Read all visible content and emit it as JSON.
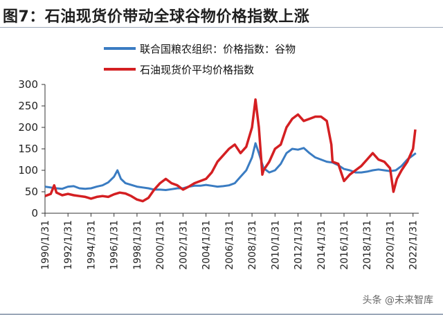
{
  "title": "图7：石油现货价带动全球谷物价格指数上涨",
  "watermark": "头条 @未来智库",
  "chart_data": {
    "type": "line",
    "title": "图7：石油现货价带动全球谷物价格指数上涨",
    "xlabel": "",
    "ylabel": "",
    "ylim": [
      0,
      300
    ],
    "yticks": [
      0,
      50,
      100,
      150,
      200,
      250,
      300
    ],
    "xlim": [
      1990,
      2022.5
    ],
    "xtick_labels": [
      "1990/1/31",
      "1992/1/31",
      "1994/1/31",
      "1996/1/31",
      "1998/1/31",
      "2000/1/31",
      "2002/1/31",
      "2004/1/31",
      "2006/1/31",
      "2008/1/31",
      "2010/1/31",
      "2012/1/31",
      "2014/1/31",
      "2016/1/31",
      "2018/1/31",
      "2020/1/31",
      "2022/1/31"
    ],
    "xtick_years": [
      1990,
      1992,
      1994,
      1996,
      1998,
      2000,
      2002,
      2004,
      2006,
      2008,
      2010,
      2012,
      2014,
      2016,
      2018,
      2020,
      2022
    ],
    "legend_position": "top",
    "series": [
      {
        "name": "联合国粮农组织：价格指数：谷物",
        "color": "#3a7cc2",
        "x": [
          1990,
          1990.5,
          1991,
          1991.5,
          1992,
          1992.5,
          1993,
          1993.5,
          1994,
          1994.5,
          1995,
          1995.5,
          1996,
          1996.3,
          1996.6,
          1997,
          1997.5,
          1998,
          1998.5,
          1999,
          1999.5,
          2000,
          2000.5,
          2001,
          2001.5,
          2002,
          2002.5,
          2003,
          2003.5,
          2004,
          2004.5,
          2005,
          2005.5,
          2006,
          2006.5,
          2007,
          2007.5,
          2008,
          2008.3,
          2008.6,
          2009,
          2009.5,
          2010,
          2010.5,
          2011,
          2011.5,
          2012,
          2012.5,
          2013,
          2013.5,
          2014,
          2014.5,
          2015,
          2015.5,
          2016,
          2016.5,
          2017,
          2017.5,
          2018,
          2018.5,
          2019,
          2019.5,
          2020,
          2020.5,
          2021,
          2021.5,
          2022,
          2022.25
        ],
        "values": [
          62,
          60,
          58,
          57,
          62,
          63,
          58,
          57,
          58,
          62,
          65,
          72,
          85,
          100,
          80,
          70,
          66,
          62,
          60,
          58,
          55,
          55,
          54,
          56,
          58,
          58,
          62,
          64,
          64,
          66,
          64,
          62,
          63,
          65,
          70,
          85,
          100,
          130,
          163,
          140,
          105,
          95,
          100,
          115,
          140,
          150,
          148,
          152,
          140,
          130,
          125,
          120,
          118,
          112,
          103,
          100,
          95,
          95,
          97,
          100,
          102,
          100,
          98,
          100,
          110,
          125,
          135,
          140
        ]
      },
      {
        "name": "石油现货价平均价格指数",
        "color": "#d41f22",
        "x": [
          1990,
          1990.5,
          1990.8,
          1991,
          1991.5,
          1992,
          1992.5,
          1993,
          1993.5,
          1994,
          1994.5,
          1995,
          1995.5,
          1996,
          1996.5,
          1997,
          1997.5,
          1998,
          1998.5,
          1999,
          1999.5,
          2000,
          2000.5,
          2001,
          2001.5,
          2002,
          2002.5,
          2003,
          2003.5,
          2004,
          2004.5,
          2005,
          2005.5,
          2006,
          2006.5,
          2007,
          2007.5,
          2008,
          2008.3,
          2008.6,
          2008.9,
          2009,
          2009.5,
          2010,
          2010.5,
          2011,
          2011.5,
          2012,
          2012.5,
          2013,
          2013.5,
          2014,
          2014.5,
          2014.9,
          2015,
          2015.5,
          2016,
          2016.5,
          2017,
          2017.5,
          2018,
          2018.5,
          2019,
          2019.5,
          2020,
          2020.3,
          2020.6,
          2021,
          2021.5,
          2022,
          2022.2
        ],
        "values": [
          40,
          45,
          65,
          48,
          42,
          45,
          42,
          40,
          38,
          34,
          38,
          40,
          38,
          44,
          48,
          46,
          40,
          32,
          28,
          36,
          55,
          70,
          80,
          70,
          65,
          55,
          62,
          70,
          75,
          80,
          95,
          120,
          135,
          150,
          160,
          140,
          155,
          200,
          265,
          200,
          90,
          100,
          120,
          150,
          160,
          200,
          220,
          230,
          215,
          220,
          225,
          225,
          215,
          160,
          120,
          115,
          75,
          90,
          100,
          110,
          125,
          140,
          125,
          120,
          105,
          50,
          80,
          100,
          120,
          150,
          195
        ]
      }
    ]
  }
}
